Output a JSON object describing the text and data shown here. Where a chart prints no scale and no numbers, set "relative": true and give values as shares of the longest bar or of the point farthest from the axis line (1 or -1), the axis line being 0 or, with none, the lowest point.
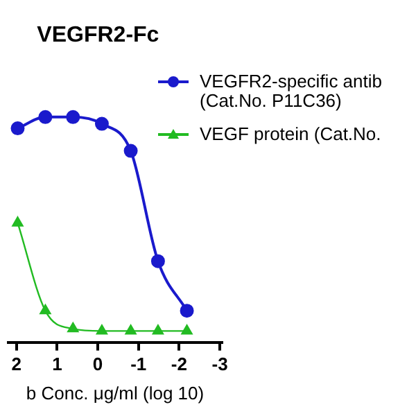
{
  "chart_data": {
    "type": "line",
    "title": "VEGFR2-Fc",
    "xlabel": "b Conc. μg/ml (log 10)",
    "relative": true,
    "x": [
      1.97,
      1.29,
      0.61,
      -0.1,
      -0.81,
      -1.48,
      -2.19
    ],
    "xlim": [
      2.2,
      -3.05
    ],
    "xticks": [
      2,
      1,
      0,
      -1,
      -2,
      -3
    ],
    "legend": "right",
    "grid": false,
    "series": [
      {
        "name": "VEGFR2-specific antib\n(Cat.No. P11C36)",
        "color": "#1a1acc",
        "marker": "circle",
        "values": [
          0.95,
          1,
          1,
          0.97,
          0.85,
          0.36,
          0.14
        ]
      },
      {
        "name": "VEGF protein (Cat.No.",
        "color": "#22bb22",
        "marker": "triangle",
        "values": [
          0.53,
          0.14,
          0.06,
          0.05,
          0.05,
          0.05,
          0.05
        ]
      }
    ]
  }
}
